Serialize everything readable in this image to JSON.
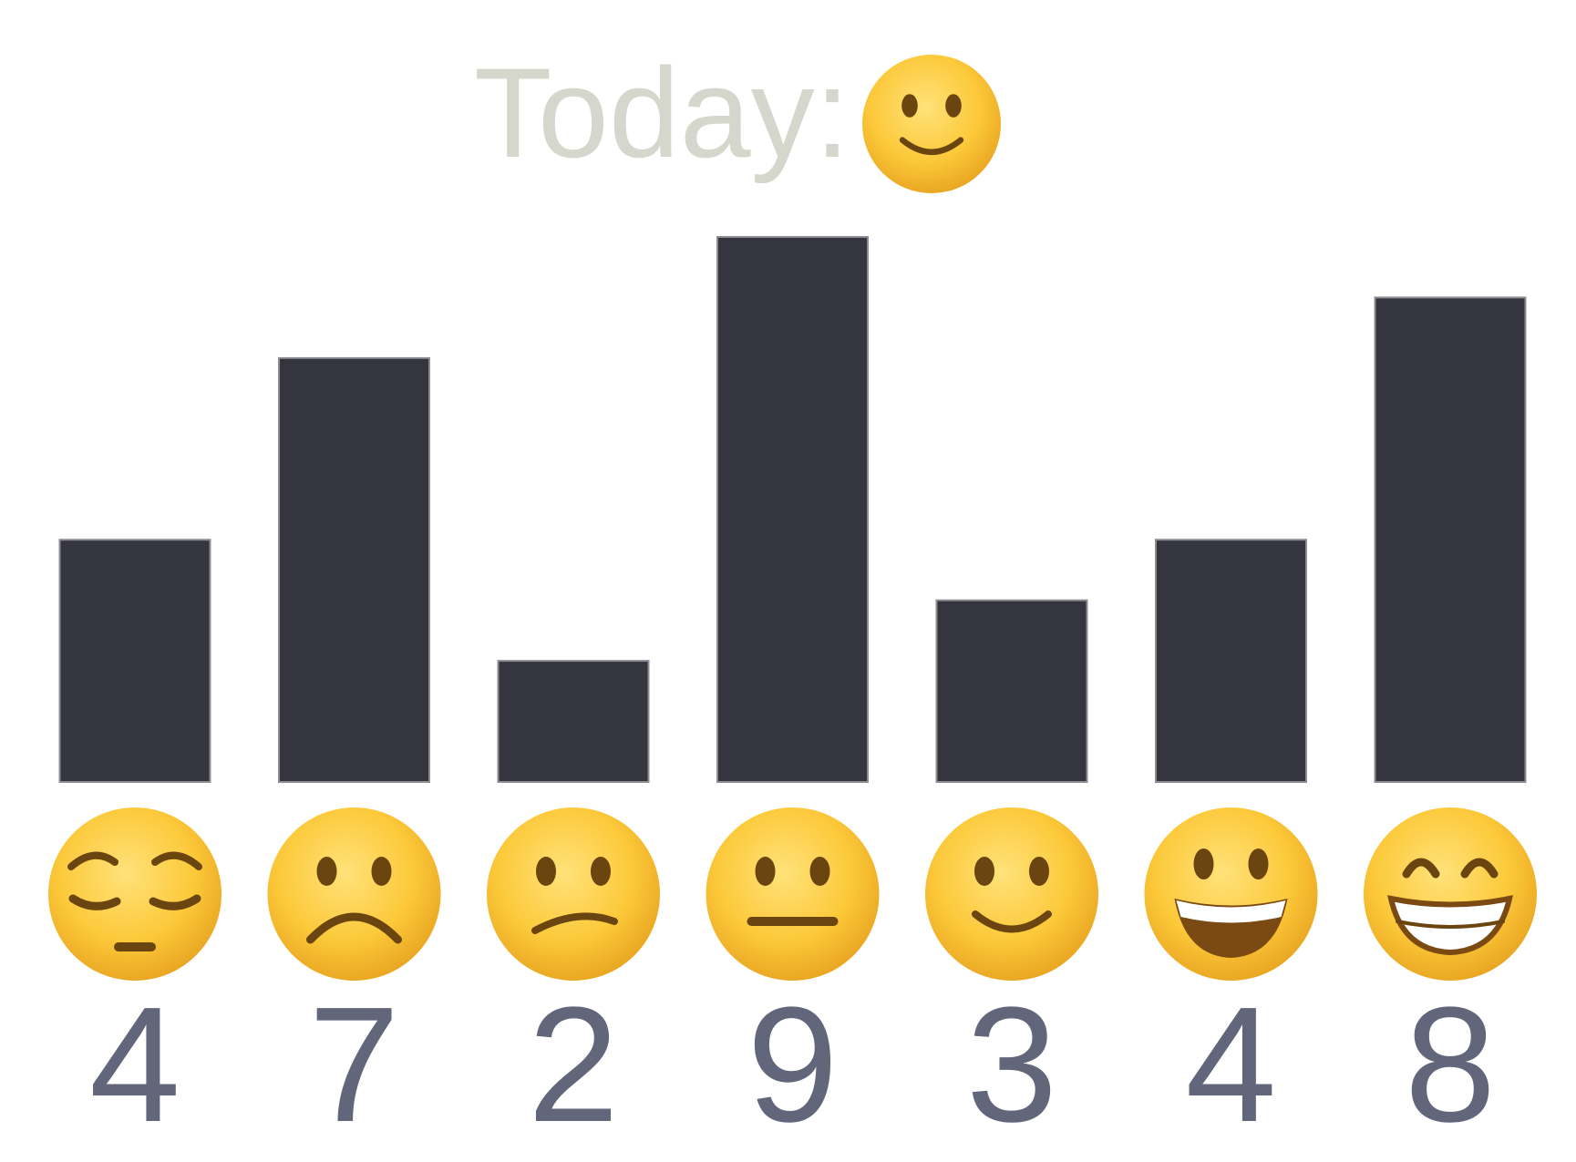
{
  "title": {
    "label": "Today:",
    "mood_icon": "slightly-smiling-face-icon"
  },
  "colors": {
    "bar": "#353540",
    "bar_outline": "#8c8c92",
    "title": "#d5d7cd",
    "count_label": "#62667a",
    "emoji_face": "#fcc93a",
    "emoji_feature": "#6b4510"
  },
  "chart_data": {
    "type": "bar",
    "title": "Today:",
    "categories": [
      "pensive-face-icon",
      "frowning-face-icon",
      "confused-face-icon",
      "neutral-face-icon",
      "slightly-smiling-face-icon",
      "grinning-face-icon",
      "beaming-face-icon"
    ],
    "values": [
      4,
      7,
      2,
      9,
      3,
      4,
      8
    ],
    "data_labels": [
      "4",
      "7",
      "2",
      "9",
      "3",
      "4",
      "8"
    ],
    "xlabel": "",
    "ylabel": "",
    "grid": false,
    "legend": "none"
  }
}
